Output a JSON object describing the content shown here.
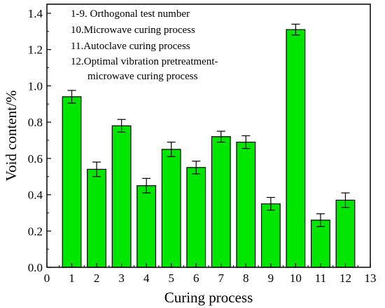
{
  "chart_data": {
    "type": "bar",
    "xlabel": "Curing process",
    "ylabel": "Void content/%",
    "xlim": [
      0,
      13
    ],
    "ylim": [
      0,
      1.45
    ],
    "xticks": [
      "0",
      "1",
      "2",
      "3",
      "4",
      "5",
      "6",
      "7",
      "8",
      "9",
      "10",
      "11",
      "12",
      "13"
    ],
    "yticks": [
      "0.0",
      "0.2",
      "0.4",
      "0.6",
      "0.8",
      "1.0",
      "1.2",
      "1.4"
    ],
    "x": [
      1,
      2,
      3,
      4,
      5,
      6,
      7,
      8,
      9,
      10,
      11,
      12
    ],
    "values": [
      0.94,
      0.54,
      0.78,
      0.45,
      0.65,
      0.55,
      0.72,
      0.69,
      0.35,
      1.31,
      0.26,
      0.37
    ],
    "errors": [
      0.035,
      0.04,
      0.035,
      0.04,
      0.04,
      0.035,
      0.03,
      0.035,
      0.035,
      0.03,
      0.035,
      0.04
    ],
    "bar_color": "#00e600",
    "grid": false,
    "annotations": [
      "1-9. Orthogonal test number",
      "10.Microwave curing process",
      "11.Autoclave curing process",
      "12.Optimal vibration pretreatment-",
      "microwave curing process"
    ]
  }
}
